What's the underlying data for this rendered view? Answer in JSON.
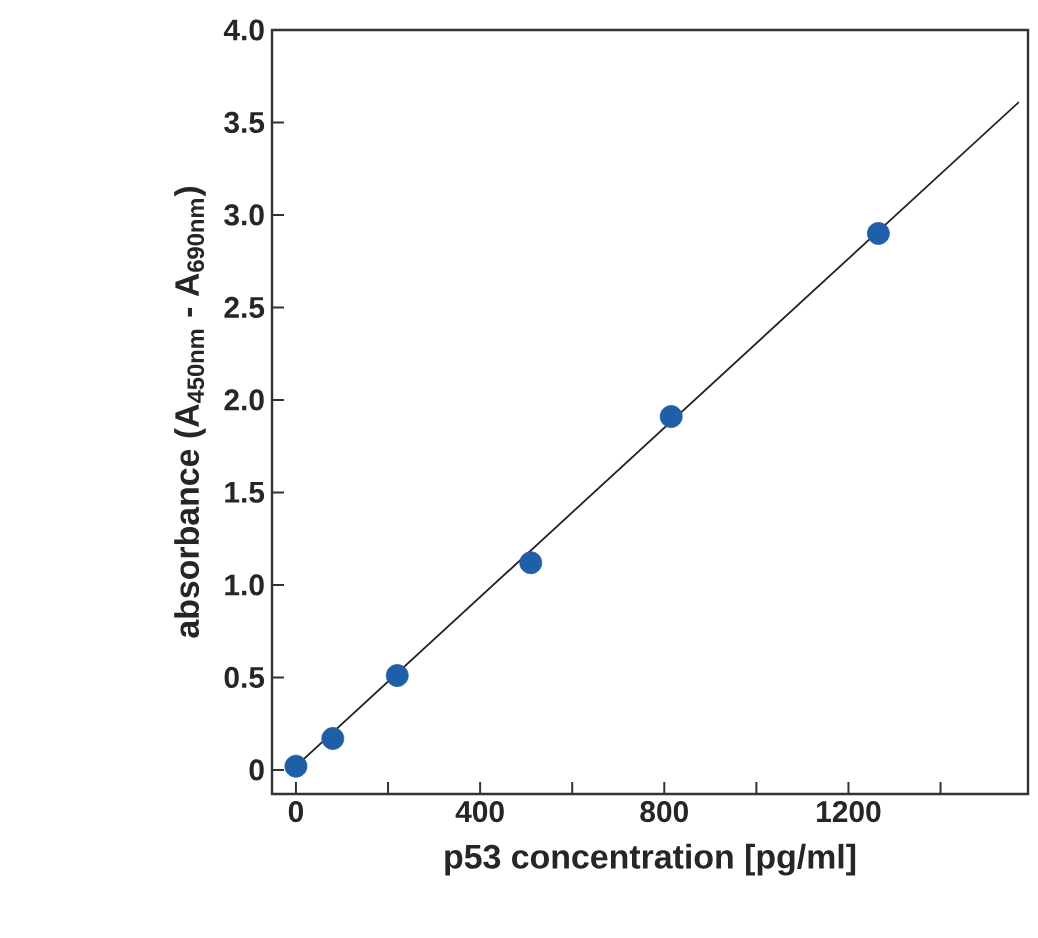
{
  "chart_data": {
    "type": "scatter",
    "xlabel": "p53 concentration [pg/ml]",
    "ylabel": "absorbance (A$_{450nm}$ - A$_{690nm}$)",
    "xlim": [
      -52,
      1590
    ],
    "ylim": [
      -0.13,
      4.0
    ],
    "xticks": [
      0,
      {
        "value": 200,
        "label": null
      },
      400,
      {
        "value": 600,
        "label": null
      },
      800,
      {
        "value": 1000,
        "label": null
      },
      1200,
      {
        "value": 1400,
        "label": null
      }
    ],
    "yticks": [
      0,
      0.5,
      {
        "value": 1,
        "label": "1.0"
      },
      1.5,
      {
        "value": 2,
        "label": "2.0"
      },
      2.5,
      {
        "value": 3,
        "label": "3.0"
      },
      3.5,
      {
        "value": 4,
        "label": "4.0"
      }
    ],
    "grid": false,
    "marker": "circle",
    "series": [
      {
        "color": "#1f5fa8",
        "x": [
          0,
          80,
          220,
          510,
          815,
          1265
        ],
        "values": [
          0.02,
          0.17,
          0.51,
          1.12,
          1.91,
          2.9
        ]
      },
      {
        "type": "line",
        "marker": "none",
        "color": "#222222",
        "x": [
          0,
          1570
        ],
        "values": [
          0.02,
          3.61
        ]
      }
    ]
  }
}
